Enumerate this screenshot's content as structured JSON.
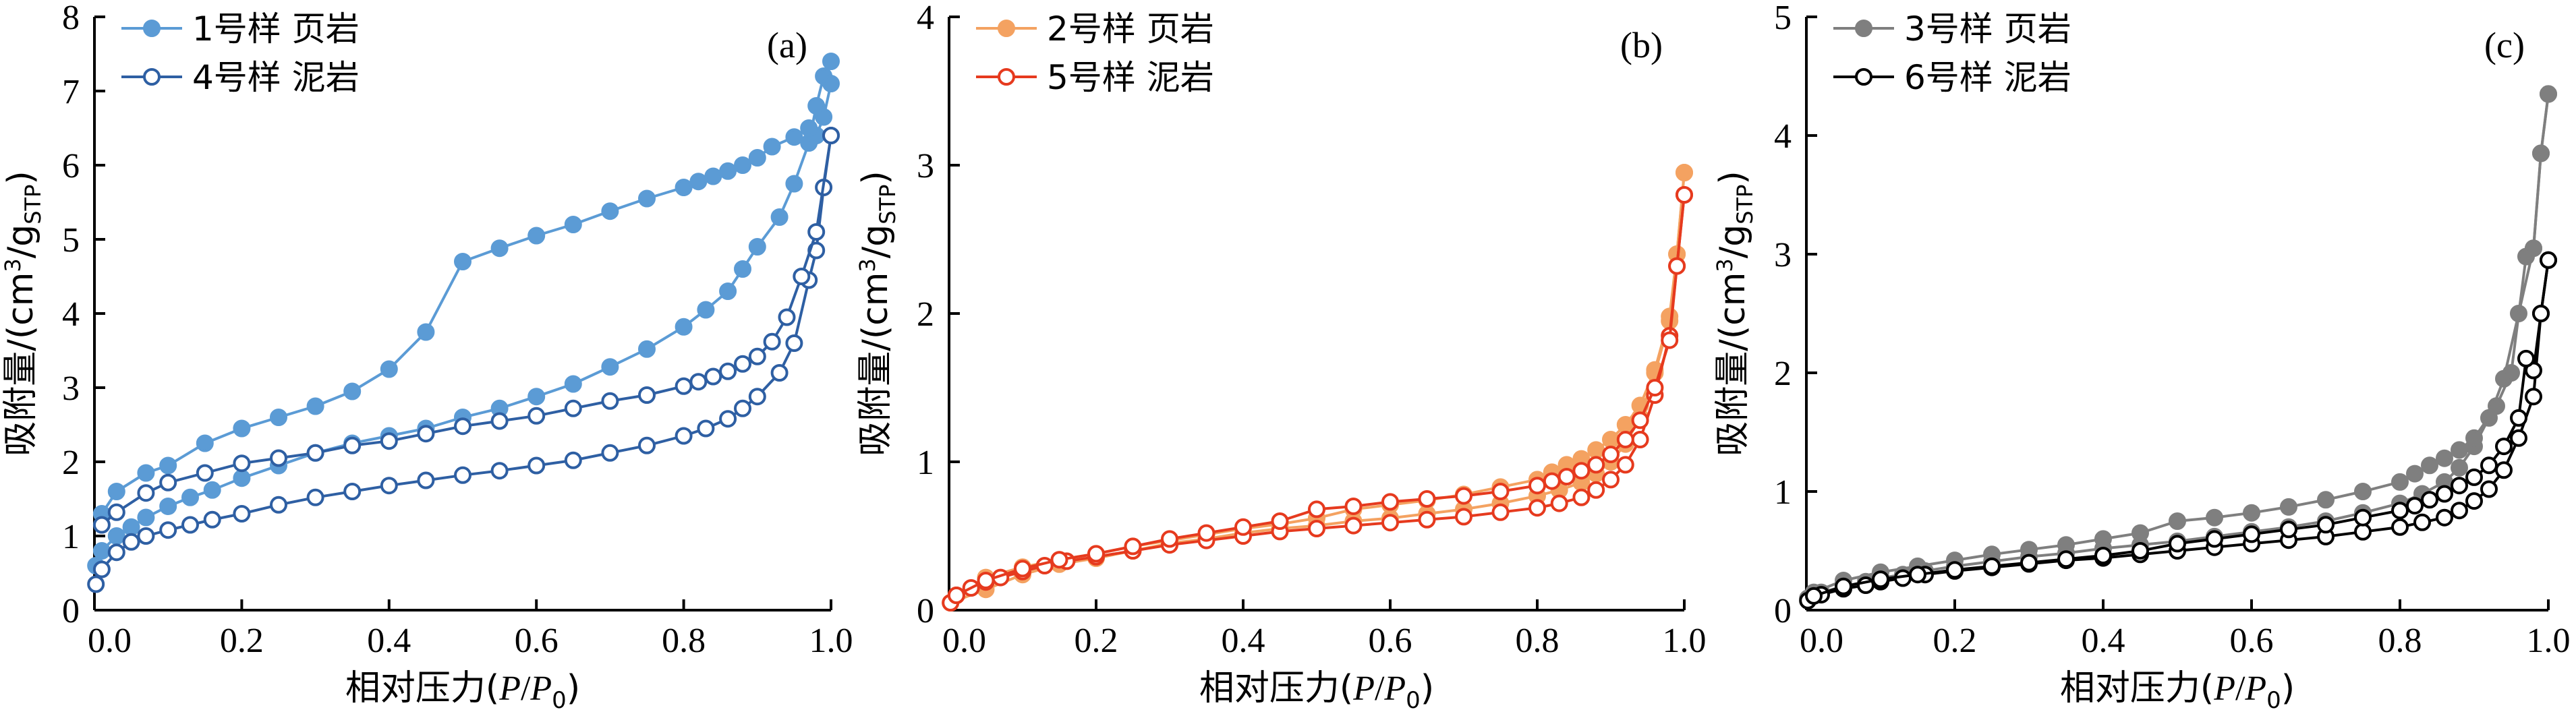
{
  "chart_data": [
    {
      "type": "line",
      "panel_label": "(a)",
      "xlabel": "相对压力(P/P0)",
      "ylabel": "吸附量/(cm³/gSTP)",
      "xlim": [
        0,
        1.0
      ],
      "ylim": [
        0,
        8
      ],
      "xticks": [
        "0.0",
        "0.2",
        "0.4",
        "0.6",
        "0.8",
        "1.0"
      ],
      "yticks": [
        "0",
        "1",
        "2",
        "3",
        "4",
        "5",
        "6",
        "7",
        "8"
      ],
      "legend_position": "top-left",
      "series": [
        {
          "name": "1号样 页岩",
          "color": "#5b9bd5",
          "marker": "filled",
          "adsorption": {
            "x": [
              0.002,
              0.01,
              0.03,
              0.05,
              0.07,
              0.1,
              0.13,
              0.16,
              0.2,
              0.25,
              0.3,
              0.35,
              0.4,
              0.45,
              0.5,
              0.55,
              0.6,
              0.65,
              0.7,
              0.75,
              0.8,
              0.83,
              0.86,
              0.88,
              0.9,
              0.93,
              0.95,
              0.97,
              0.98,
              0.99,
              1.0
            ],
            "y": [
              0.6,
              0.8,
              1.0,
              1.12,
              1.25,
              1.4,
              1.52,
              1.62,
              1.78,
              1.95,
              2.12,
              2.25,
              2.35,
              2.45,
              2.6,
              2.72,
              2.88,
              3.05,
              3.28,
              3.52,
              3.82,
              4.05,
              4.3,
              4.6,
              4.9,
              5.3,
              5.75,
              6.3,
              6.8,
              7.2,
              7.4
            ]
          },
          "desorption": {
            "x": [
              1.0,
              0.99,
              0.98,
              0.97,
              0.95,
              0.92,
              0.9,
              0.88,
              0.86,
              0.84,
              0.82,
              0.8,
              0.75,
              0.7,
              0.65,
              0.6,
              0.55,
              0.5,
              0.45,
              0.4,
              0.35,
              0.3,
              0.25,
              0.2,
              0.15,
              0.1,
              0.07,
              0.03,
              0.01
            ],
            "y": [
              7.1,
              6.65,
              6.4,
              6.5,
              6.38,
              6.25,
              6.1,
              6.0,
              5.92,
              5.85,
              5.78,
              5.7,
              5.55,
              5.38,
              5.2,
              5.05,
              4.88,
              4.7,
              3.75,
              3.25,
              2.95,
              2.75,
              2.6,
              2.45,
              2.25,
              1.95,
              1.85,
              1.6,
              1.3
            ]
          }
        },
        {
          "name": "4号样 泥岩",
          "color": "#2e5fa3",
          "marker": "open",
          "adsorption": {
            "x": [
              0.002,
              0.01,
              0.03,
              0.05,
              0.07,
              0.1,
              0.13,
              0.16,
              0.2,
              0.25,
              0.3,
              0.35,
              0.4,
              0.45,
              0.5,
              0.55,
              0.6,
              0.65,
              0.7,
              0.75,
              0.8,
              0.83,
              0.86,
              0.88,
              0.9,
              0.93,
              0.95,
              0.97,
              0.98,
              0.99,
              1.0
            ],
            "y": [
              0.35,
              0.55,
              0.78,
              0.92,
              1.0,
              1.08,
              1.15,
              1.22,
              1.3,
              1.42,
              1.52,
              1.6,
              1.68,
              1.75,
              1.82,
              1.88,
              1.95,
              2.02,
              2.12,
              2.22,
              2.35,
              2.45,
              2.58,
              2.72,
              2.88,
              3.2,
              3.6,
              4.45,
              4.85,
              5.7,
              6.4
            ]
          },
          "desorption": {
            "x": [
              1.0,
              0.98,
              0.96,
              0.94,
              0.92,
              0.9,
              0.88,
              0.86,
              0.84,
              0.82,
              0.8,
              0.75,
              0.7,
              0.65,
              0.6,
              0.55,
              0.5,
              0.45,
              0.4,
              0.35,
              0.3,
              0.25,
              0.2,
              0.15,
              0.1,
              0.07,
              0.03,
              0.01
            ],
            "y": [
              6.4,
              5.1,
              4.5,
              3.95,
              3.62,
              3.42,
              3.32,
              3.22,
              3.15,
              3.08,
              3.02,
              2.9,
              2.82,
              2.72,
              2.62,
              2.55,
              2.48,
              2.38,
              2.28,
              2.22,
              2.12,
              2.05,
              1.98,
              1.85,
              1.72,
              1.58,
              1.32,
              1.15
            ]
          }
        }
      ]
    },
    {
      "type": "line",
      "panel_label": "(b)",
      "xlabel": "相对压力(P/P0)",
      "ylabel": "吸附量/(cm³/gSTP)",
      "xlim": [
        0,
        1.0
      ],
      "ylim": [
        0,
        4
      ],
      "xticks": [
        "0.0",
        "0.2",
        "0.4",
        "0.6",
        "0.8",
        "1.0"
      ],
      "yticks": [
        "0",
        "1",
        "2",
        "3",
        "4"
      ],
      "legend_position": "top-left",
      "series": [
        {
          "name": "2号样 页岩",
          "color": "#f4a261",
          "marker": "filled",
          "adsorption": {
            "x": [
              0.002,
              0.05,
              0.1,
              0.15,
              0.2,
              0.25,
              0.3,
              0.35,
              0.4,
              0.45,
              0.5,
              0.55,
              0.6,
              0.65,
              0.7,
              0.75,
              0.8,
              0.83,
              0.86,
              0.88,
              0.9,
              0.92,
              0.94,
              0.96,
              0.98,
              0.99,
              1.0
            ],
            "y": [
              0.05,
              0.14,
              0.24,
              0.31,
              0.35,
              0.4,
              0.45,
              0.48,
              0.52,
              0.55,
              0.57,
              0.6,
              0.62,
              0.65,
              0.68,
              0.72,
              0.77,
              0.81,
              0.86,
              0.92,
              1.0,
              1.12,
              1.3,
              1.6,
              1.95,
              2.4,
              2.95
            ]
          },
          "desorption": {
            "x": [
              1.0,
              0.99,
              0.98,
              0.96,
              0.94,
              0.92,
              0.9,
              0.88,
              0.86,
              0.84,
              0.82,
              0.8,
              0.75,
              0.7,
              0.65,
              0.6,
              0.55,
              0.5,
              0.45,
              0.4,
              0.35,
              0.3,
              0.25,
              0.2,
              0.15,
              0.1,
              0.05,
              0.01
            ],
            "y": [
              2.95,
              2.4,
              1.98,
              1.62,
              1.38,
              1.25,
              1.15,
              1.08,
              1.02,
              0.98,
              0.93,
              0.88,
              0.83,
              0.78,
              0.74,
              0.71,
              0.68,
              0.62,
              0.58,
              0.55,
              0.51,
              0.47,
              0.43,
              0.38,
              0.34,
              0.29,
              0.22,
              0.1
            ]
          }
        },
        {
          "name": "5号样 泥岩",
          "color": "#e63a1e",
          "marker": "open",
          "adsorption": {
            "x": [
              0.002,
              0.01,
              0.03,
              0.05,
              0.07,
              0.1,
              0.13,
              0.16,
              0.2,
              0.25,
              0.3,
              0.35,
              0.4,
              0.45,
              0.5,
              0.55,
              0.6,
              0.65,
              0.7,
              0.75,
              0.8,
              0.83,
              0.86,
              0.88,
              0.9,
              0.92,
              0.94,
              0.96,
              0.98,
              0.99,
              1.0
            ],
            "y": [
              0.05,
              0.1,
              0.15,
              0.19,
              0.22,
              0.26,
              0.3,
              0.33,
              0.36,
              0.4,
              0.44,
              0.47,
              0.5,
              0.53,
              0.55,
              0.57,
              0.59,
              0.61,
              0.63,
              0.66,
              0.69,
              0.72,
              0.76,
              0.81,
              0.88,
              0.98,
              1.15,
              1.45,
              1.85,
              2.32,
              2.8
            ]
          },
          "desorption": {
            "x": [
              1.0,
              0.99,
              0.98,
              0.96,
              0.94,
              0.92,
              0.9,
              0.88,
              0.86,
              0.84,
              0.82,
              0.8,
              0.75,
              0.7,
              0.65,
              0.6,
              0.55,
              0.5,
              0.45,
              0.4,
              0.35,
              0.3,
              0.25,
              0.2,
              0.15,
              0.1,
              0.05,
              0.01
            ],
            "y": [
              2.8,
              2.32,
              1.82,
              1.5,
              1.28,
              1.15,
              1.05,
              0.98,
              0.94,
              0.9,
              0.87,
              0.84,
              0.8,
              0.77,
              0.75,
              0.73,
              0.7,
              0.68,
              0.6,
              0.56,
              0.52,
              0.48,
              0.43,
              0.38,
              0.34,
              0.28,
              0.2,
              0.1
            ]
          }
        }
      ]
    },
    {
      "type": "line",
      "panel_label": "(c)",
      "xlabel": "相对压力(P/P0)",
      "ylabel": "吸附量/(cm³/gSTP)",
      "xlim": [
        0,
        1.0
      ],
      "ylim": [
        0,
        5
      ],
      "xticks": [
        "0.0",
        "0.2",
        "0.4",
        "0.6",
        "0.8",
        "1.0"
      ],
      "yticks": [
        "0",
        "1",
        "2",
        "3",
        "4",
        "5"
      ],
      "legend_position": "top-left",
      "series": [
        {
          "name": "3号样 页岩",
          "color": "#7f7f7f",
          "marker": "filled",
          "adsorption": {
            "x": [
              0.002,
              0.02,
              0.05,
              0.08,
              0.1,
              0.13,
              0.16,
              0.2,
              0.25,
              0.3,
              0.35,
              0.4,
              0.45,
              0.5,
              0.55,
              0.6,
              0.65,
              0.7,
              0.75,
              0.8,
              0.83,
              0.86,
              0.88,
              0.9,
              0.92,
              0.94,
              0.96,
              0.98,
              0.99,
              1.0
            ],
            "y": [
              0.1,
              0.15,
              0.2,
              0.24,
              0.27,
              0.3,
              0.33,
              0.37,
              0.41,
              0.45,
              0.48,
              0.52,
              0.55,
              0.58,
              0.62,
              0.66,
              0.7,
              0.75,
              0.82,
              0.9,
              0.98,
              1.08,
              1.2,
              1.38,
              1.62,
              1.95,
              2.5,
              3.05,
              3.85,
              4.35
            ]
          },
          "desorption": {
            "x": [
              1.0,
              0.99,
              0.98,
              0.97,
              0.95,
              0.93,
              0.9,
              0.88,
              0.86,
              0.84,
              0.82,
              0.8,
              0.75,
              0.7,
              0.65,
              0.6,
              0.55,
              0.5,
              0.45,
              0.4,
              0.35,
              0.3,
              0.25,
              0.2,
              0.15,
              0.1,
              0.05,
              0.01
            ],
            "y": [
              4.35,
              3.85,
              3.05,
              2.98,
              2.0,
              1.72,
              1.45,
              1.35,
              1.28,
              1.22,
              1.15,
              1.08,
              1.0,
              0.93,
              0.87,
              0.82,
              0.78,
              0.75,
              0.65,
              0.6,
              0.55,
              0.51,
              0.47,
              0.42,
              0.37,
              0.32,
              0.25,
              0.15
            ]
          }
        },
        {
          "name": "6号样 泥岩",
          "color": "#000000",
          "marker": "open",
          "adsorption": {
            "x": [
              0.002,
              0.02,
              0.05,
              0.08,
              0.1,
              0.13,
              0.16,
              0.2,
              0.25,
              0.3,
              0.35,
              0.4,
              0.45,
              0.5,
              0.55,
              0.6,
              0.65,
              0.7,
              0.75,
              0.8,
              0.83,
              0.86,
              0.88,
              0.9,
              0.92,
              0.94,
              0.96,
              0.98,
              0.99,
              1.0
            ],
            "y": [
              0.08,
              0.13,
              0.18,
              0.21,
              0.24,
              0.27,
              0.3,
              0.33,
              0.36,
              0.39,
              0.42,
              0.44,
              0.47,
              0.5,
              0.53,
              0.56,
              0.59,
              0.62,
              0.66,
              0.7,
              0.74,
              0.78,
              0.84,
              0.92,
              1.02,
              1.18,
              1.45,
              1.8,
              2.5,
              2.95
            ]
          },
          "desorption": {
            "x": [
              1.0,
              0.99,
              0.98,
              0.97,
              0.96,
              0.94,
              0.92,
              0.9,
              0.88,
              0.86,
              0.84,
              0.82,
              0.8,
              0.75,
              0.7,
              0.65,
              0.6,
              0.55,
              0.5,
              0.45,
              0.4,
              0.35,
              0.3,
              0.25,
              0.2,
              0.15,
              0.1,
              0.05,
              0.01
            ],
            "y": [
              2.95,
              2.5,
              2.02,
              2.12,
              1.62,
              1.38,
              1.22,
              1.12,
              1.05,
              0.98,
              0.93,
              0.88,
              0.84,
              0.78,
              0.72,
              0.68,
              0.64,
              0.6,
              0.56,
              0.5,
              0.46,
              0.43,
              0.4,
              0.37,
              0.34,
              0.3,
              0.26,
              0.2,
              0.12
            ]
          }
        }
      ]
    }
  ]
}
